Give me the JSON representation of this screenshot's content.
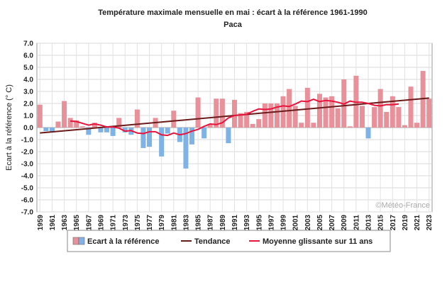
{
  "chart_data": {
    "type": "bar",
    "title": "Température maximale mensuelle en mai : écart à la référence 1961-1990",
    "subtitle": "Paca",
    "ylabel": "Ecart à la référence (° C)",
    "xlabel": "",
    "credit": "©Météo-France",
    "ylim": [
      -7,
      7
    ],
    "ytick_step": 1,
    "grid": true,
    "legend_position": "bottom",
    "colors": {
      "positive": "#e8919a",
      "negative": "#7fb2e5",
      "trend": "#6b1a1a",
      "moving_average": "#e8143c"
    },
    "series": [
      {
        "name": "Ecart à la référence",
        "type": "bar",
        "x": [
          1959,
          1960,
          1961,
          1962,
          1963,
          1964,
          1965,
          1966,
          1967,
          1968,
          1969,
          1970,
          1971,
          1972,
          1973,
          1974,
          1975,
          1976,
          1977,
          1978,
          1979,
          1980,
          1981,
          1982,
          1983,
          1984,
          1985,
          1986,
          1987,
          1988,
          1989,
          1990,
          1991,
          1992,
          1993,
          1994,
          1995,
          1996,
          1997,
          1998,
          1999,
          2000,
          2001,
          2002,
          2003,
          2004,
          2005,
          2006,
          2007,
          2008,
          2009,
          2010,
          2011,
          2012,
          2013,
          2014,
          2015,
          2016,
          2017,
          2018,
          2019,
          2020,
          2021,
          2022,
          2023
        ],
        "values": [
          1.9,
          -0.3,
          -0.4,
          0.5,
          2.2,
          0.8,
          0.6,
          0.1,
          -0.6,
          0.4,
          -0.4,
          -0.4,
          -0.7,
          0.8,
          -0.4,
          -0.6,
          1.5,
          -1.7,
          -1.6,
          0.8,
          -2.4,
          -0.5,
          1.4,
          -1.2,
          -3.4,
          -1.4,
          2.5,
          -0.9,
          0.3,
          2.4,
          2.4,
          -1.3,
          2.3,
          1.2,
          1.3,
          0.3,
          0.7,
          2.0,
          2.0,
          2.0,
          2.6,
          3.2,
          1.8,
          0.4,
          3.3,
          0.4,
          2.8,
          2.5,
          2.6,
          1.6,
          4.0,
          0.1,
          4.3,
          1.8,
          -0.9,
          1.7,
          3.2,
          1.3,
          2.6,
          1.7,
          0.2,
          3.4,
          0.4,
          4.7,
          2.4
        ]
      },
      {
        "name": "Tendance",
        "type": "line",
        "x": [
          1959,
          2023
        ],
        "values": [
          -0.45,
          2.45
        ]
      },
      {
        "name": "Moyenne glissante sur 11 ans",
        "type": "line",
        "x": [
          1964,
          1965,
          1966,
          1967,
          1968,
          1969,
          1970,
          1971,
          1972,
          1973,
          1974,
          1975,
          1976,
          1977,
          1978,
          1979,
          1980,
          1981,
          1982,
          1983,
          1984,
          1985,
          1986,
          1987,
          1988,
          1989,
          1990,
          1991,
          1992,
          1993,
          1994,
          1995,
          1996,
          1997,
          1998,
          1999,
          2000,
          2001,
          2002,
          2003,
          2004,
          2005,
          2006,
          2007,
          2008,
          2009,
          2010,
          2011,
          2012,
          2013,
          2014,
          2015,
          2016,
          2017,
          2018
        ],
        "values": [
          0.55,
          0.5,
          0.35,
          0.2,
          0.3,
          0.2,
          0.05,
          0.05,
          -0.05,
          -0.3,
          -0.25,
          -0.45,
          -0.5,
          -0.35,
          -0.35,
          -0.6,
          -0.65,
          -0.45,
          -0.6,
          -0.5,
          -0.3,
          -0.15,
          0.1,
          0.3,
          0.25,
          0.4,
          0.8,
          1.0,
          1.05,
          1.1,
          1.35,
          1.55,
          1.5,
          1.55,
          1.7,
          1.8,
          1.75,
          1.95,
          2.2,
          2.15,
          2.35,
          2.15,
          2.25,
          2.2,
          2.1,
          1.95,
          2.2,
          2.1,
          2.1,
          2.0,
          1.85,
          1.8,
          1.9,
          1.9,
          1.95
        ]
      }
    ],
    "xtick_labels": [
      "1959",
      "1961",
      "1963",
      "1965",
      "1967",
      "1969",
      "1971",
      "1973",
      "1975",
      "1977",
      "1979",
      "1981",
      "1983",
      "1985",
      "1987",
      "1989",
      "1991",
      "1993",
      "1995",
      "1997",
      "1999",
      "2001",
      "2003",
      "2005",
      "2007",
      "2009",
      "2011",
      "2013",
      "2015",
      "2017",
      "2019",
      "2021",
      "2023"
    ]
  }
}
